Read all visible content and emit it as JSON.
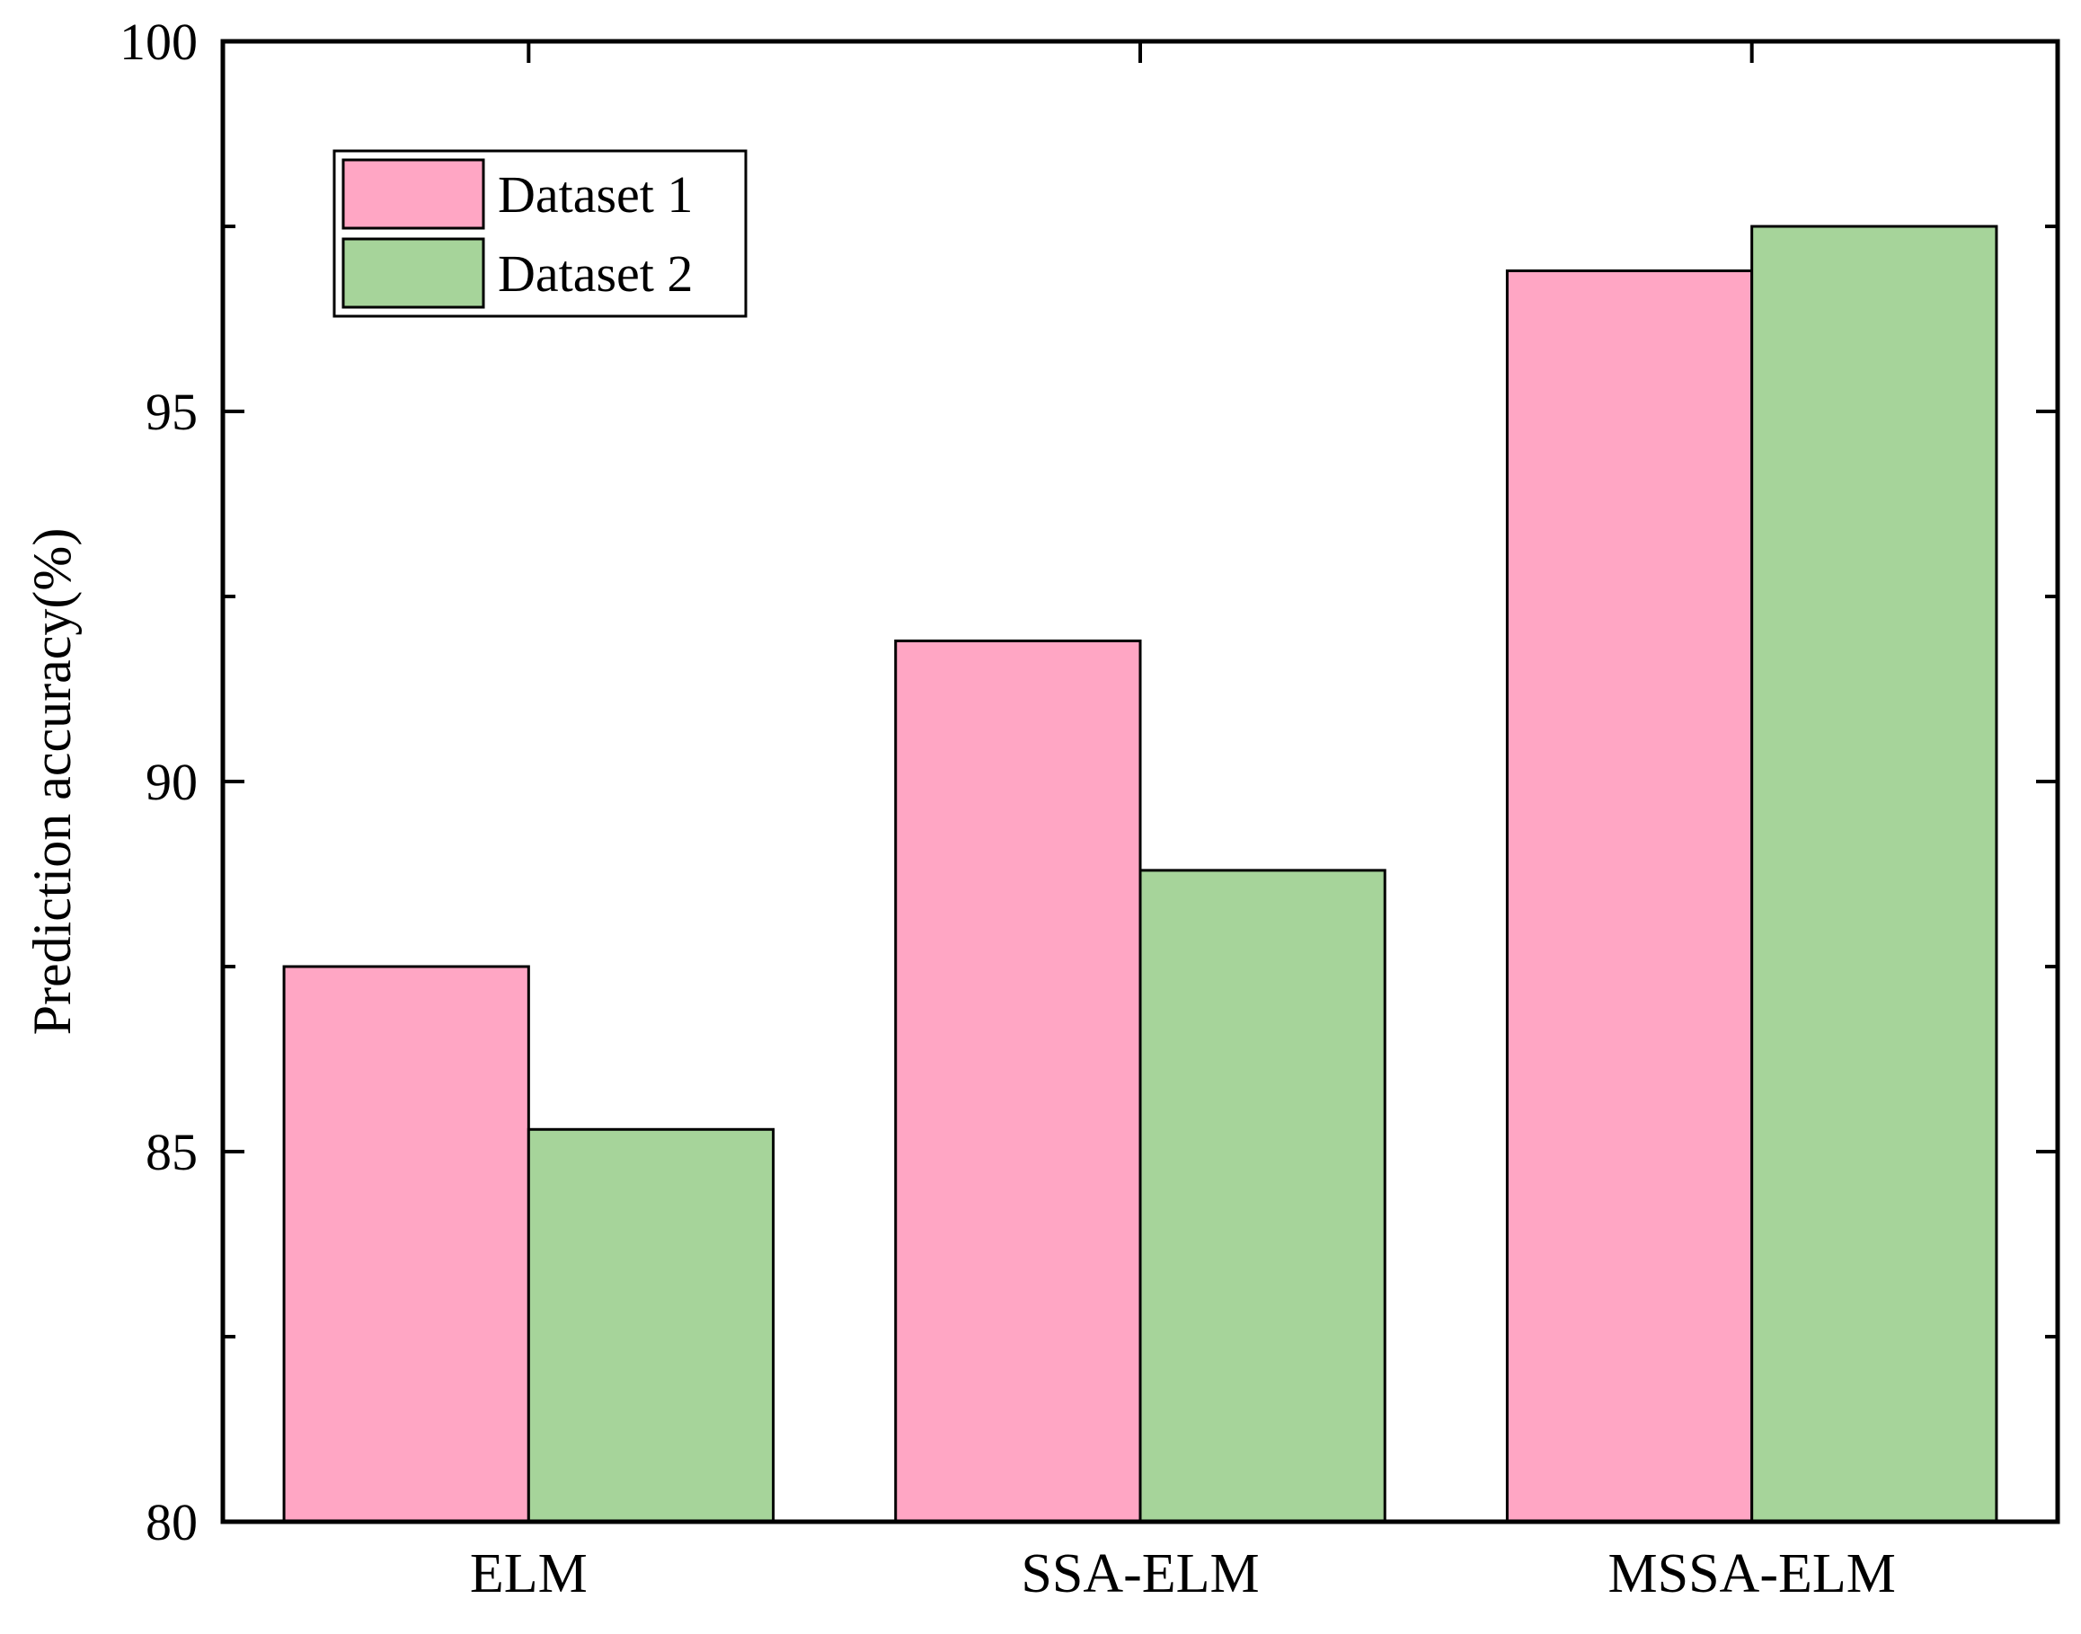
{
  "chart_data": {
    "type": "bar",
    "title": "",
    "xlabel": "",
    "ylabel": "Prediction accuracy(%)",
    "categories": [
      "ELM",
      "SSA-ELM",
      "MSSA-ELM"
    ],
    "series": [
      {
        "name": "Dataset 1",
        "values": [
          87.5,
          91.9,
          96.9
        ],
        "color": "#ffa6c4"
      },
      {
        "name": "Dataset 2",
        "values": [
          85.3,
          88.8,
          97.5
        ],
        "color": "#a6d49a"
      }
    ],
    "ylim": [
      80,
      100
    ],
    "yticks": [
      80,
      85,
      90,
      95,
      100
    ],
    "yticks_minor": [
      82.5,
      87.5,
      92.5,
      97.5
    ],
    "grid": false,
    "legend_position": "top-left"
  }
}
